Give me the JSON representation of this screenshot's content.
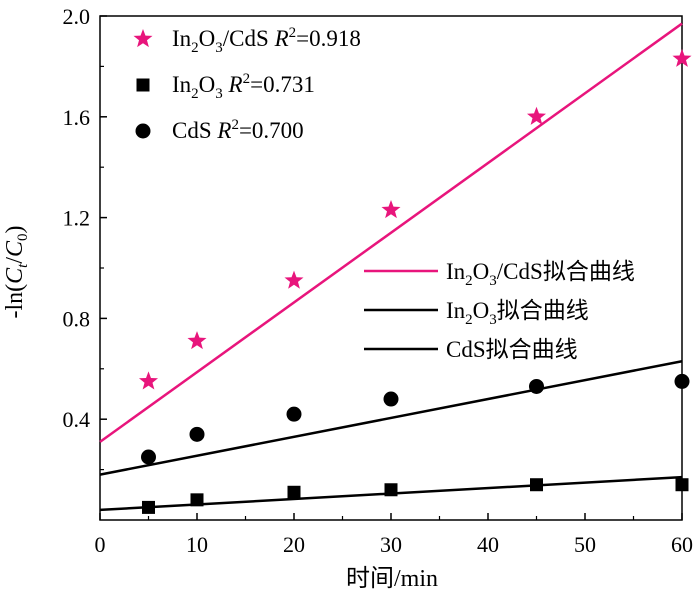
{
  "chart_data": {
    "type": "scatter",
    "title": "",
    "xlabel": "时间/min",
    "ylabel": {
      "prefix": "-ln(",
      "c1": "C",
      "c1_sub": "t",
      "slash": "/",
      "c2": "C",
      "c2_sub": "0",
      "suffix": ")"
    },
    "xlim": [
      0,
      60
    ],
    "ylim": [
      0,
      2.0
    ],
    "x_ticks": [
      0,
      10,
      20,
      30,
      40,
      50,
      60
    ],
    "x_tick_labels": [
      "0",
      "10",
      "20",
      "30",
      "40",
      "50",
      "60"
    ],
    "y_ticks": [
      0.4,
      0.8,
      1.2,
      1.6,
      2.0
    ],
    "y_tick_labels": [
      "0.4",
      "0.8",
      "1.2",
      "1.6",
      "2.0"
    ],
    "x": [
      5,
      10,
      20,
      30,
      45,
      60
    ],
    "series": [
      {
        "name": {
          "a": "In",
          "a_sub": "2",
          "b": "O",
          "b_sub": "3",
          "c": "/CdS",
          "r_label": "R",
          "r_sup": "2",
          "r_value": "=0.918"
        },
        "marker": "star",
        "color": "#e8157c",
        "values": [
          0.55,
          0.71,
          0.95,
          1.23,
          1.6,
          1.83
        ]
      },
      {
        "name": {
          "a": "In",
          "a_sub": "2",
          "b": "O",
          "b_sub": "3",
          "c": "",
          "r_label": "R",
          "r_sup": "2",
          "r_value": "=0.731"
        },
        "marker": "square",
        "color": "#000000",
        "values": [
          0.05,
          0.08,
          0.11,
          0.12,
          0.14,
          0.14
        ]
      },
      {
        "name": {
          "a": "CdS",
          "a_sub": "",
          "b": "",
          "b_sub": "",
          "c": "",
          "r_label": "R",
          "r_sup": "2",
          "r_value": "=0.700"
        },
        "marker": "circle",
        "color": "#000000",
        "values": [
          0.25,
          0.34,
          0.42,
          0.48,
          0.53,
          0.55
        ]
      }
    ],
    "fit_lines": [
      {
        "name": {
          "a": "In",
          "a_sub": "2",
          "b": "O",
          "b_sub": "3",
          "c": "/CdS拟合曲线"
        },
        "color": "#e8157c",
        "x": [
          0,
          60
        ],
        "y": [
          0.31,
          1.97
        ]
      },
      {
        "name": {
          "a": "In",
          "a_sub": "2",
          "b": "O",
          "b_sub": "3",
          "c": "拟合曲线"
        },
        "color": "#000000",
        "x": [
          0,
          60
        ],
        "y": [
          0.04,
          0.17
        ]
      },
      {
        "name": {
          "a": "CdS拟合曲线",
          "a_sub": "",
          "b": "",
          "b_sub": "",
          "c": ""
        },
        "color": "#000000",
        "x": [
          0,
          60
        ],
        "y": [
          0.18,
          0.63
        ]
      }
    ],
    "grid": false,
    "legend_placement": [
      "top-left",
      "center-right"
    ]
  }
}
